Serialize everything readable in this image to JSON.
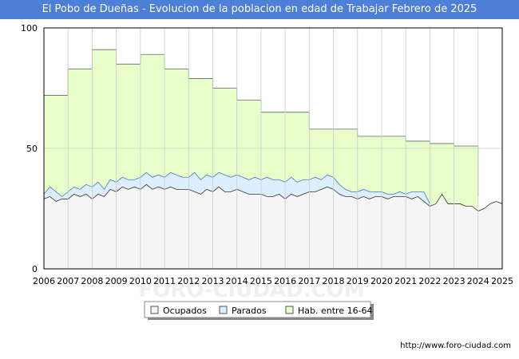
{
  "chart_data": {
    "type": "area",
    "title": "El Pobo de Dueñas - Evolucion de la poblacion en edad de Trabajar Febrero de 2025",
    "xlabel": "",
    "ylabel": "",
    "x_ticks": [
      "2006",
      "2007",
      "2008",
      "2009",
      "2010",
      "2011",
      "2012",
      "2013",
      "2014",
      "2015",
      "2016",
      "2017",
      "2018",
      "2019",
      "2020",
      "2021",
      "2022",
      "2023",
      "2024",
      "2025"
    ],
    "y_ticks": [
      0,
      50,
      100
    ],
    "xlim": [
      2006,
      2025
    ],
    "ylim": [
      0,
      100
    ],
    "grid": true,
    "legend_position": "bottom-center",
    "watermark": "FORO-CIUDAD.COM",
    "series": [
      {
        "name": "Hab. entre 16-64",
        "color": "#e8ffcc",
        "line_color": "#666666",
        "steps": [
          {
            "from": 2006,
            "value": 72
          },
          {
            "from": 2007,
            "value": 83
          },
          {
            "from": 2008,
            "value": 91
          },
          {
            "from": 2009,
            "value": 85
          },
          {
            "from": 2010,
            "value": 89
          },
          {
            "from": 2011,
            "value": 83
          },
          {
            "from": 2012,
            "value": 79
          },
          {
            "from": 2013,
            "value": 75
          },
          {
            "from": 2014,
            "value": 70
          },
          {
            "from": 2015,
            "value": 65
          },
          {
            "from": 2016,
            "value": 65
          },
          {
            "from": 2017,
            "value": 58
          },
          {
            "from": 2018,
            "value": 58
          },
          {
            "from": 2019,
            "value": 55
          },
          {
            "from": 2020,
            "value": 55
          },
          {
            "from": 2021,
            "value": 53
          },
          {
            "from": 2022,
            "value": 52
          },
          {
            "from": 2023,
            "value": 51
          },
          {
            "from": 2024,
            "value": null
          }
        ]
      },
      {
        "name": "Parados",
        "color": "#ddeeff",
        "line_color": "#4477cc",
        "points": [
          [
            2006.0,
            31
          ],
          [
            2006.25,
            34
          ],
          [
            2006.5,
            32
          ],
          [
            2006.75,
            30
          ],
          [
            2007.0,
            32
          ],
          [
            2007.25,
            34
          ],
          [
            2007.5,
            33
          ],
          [
            2007.75,
            35
          ],
          [
            2008.0,
            34
          ],
          [
            2008.25,
            36
          ],
          [
            2008.5,
            33
          ],
          [
            2008.75,
            37
          ],
          [
            2009.0,
            36
          ],
          [
            2009.25,
            38
          ],
          [
            2009.5,
            37
          ],
          [
            2009.75,
            37
          ],
          [
            2010.0,
            38
          ],
          [
            2010.25,
            40
          ],
          [
            2010.5,
            38
          ],
          [
            2010.75,
            39
          ],
          [
            2011.0,
            38
          ],
          [
            2011.25,
            40
          ],
          [
            2011.5,
            39
          ],
          [
            2011.75,
            38
          ],
          [
            2012.0,
            38
          ],
          [
            2012.25,
            40
          ],
          [
            2012.5,
            37
          ],
          [
            2012.75,
            39
          ],
          [
            2013.0,
            38
          ],
          [
            2013.25,
            40
          ],
          [
            2013.5,
            39
          ],
          [
            2013.75,
            38
          ],
          [
            2014.0,
            39
          ],
          [
            2014.25,
            38
          ],
          [
            2014.5,
            37
          ],
          [
            2014.75,
            38
          ],
          [
            2015.0,
            37
          ],
          [
            2015.25,
            38
          ],
          [
            2015.5,
            37
          ],
          [
            2015.75,
            37
          ],
          [
            2016.0,
            36
          ],
          [
            2016.25,
            38
          ],
          [
            2016.5,
            36
          ],
          [
            2016.75,
            37
          ],
          [
            2017.0,
            37
          ],
          [
            2017.25,
            38
          ],
          [
            2017.5,
            37
          ],
          [
            2017.75,
            39
          ],
          [
            2018.0,
            38
          ],
          [
            2018.25,
            35
          ],
          [
            2018.5,
            33
          ],
          [
            2018.75,
            32
          ],
          [
            2019.0,
            32
          ],
          [
            2019.25,
            33
          ],
          [
            2019.5,
            32
          ],
          [
            2019.75,
            32
          ],
          [
            2020.0,
            32
          ],
          [
            2020.25,
            31
          ],
          [
            2020.5,
            31
          ],
          [
            2020.75,
            32
          ],
          [
            2021.0,
            31
          ],
          [
            2021.25,
            32
          ],
          [
            2021.5,
            32
          ],
          [
            2021.75,
            32
          ],
          [
            2022.0,
            27
          ]
        ]
      },
      {
        "name": "Ocupados",
        "color": "#f5f5f5",
        "line_color": "#333333",
        "points": [
          [
            2006.0,
            29
          ],
          [
            2006.25,
            30
          ],
          [
            2006.5,
            28
          ],
          [
            2006.75,
            29
          ],
          [
            2007.0,
            29
          ],
          [
            2007.25,
            31
          ],
          [
            2007.5,
            30
          ],
          [
            2007.75,
            31
          ],
          [
            2008.0,
            29
          ],
          [
            2008.25,
            31
          ],
          [
            2008.5,
            30
          ],
          [
            2008.75,
            33
          ],
          [
            2009.0,
            32
          ],
          [
            2009.25,
            34
          ],
          [
            2009.5,
            33
          ],
          [
            2009.75,
            34
          ],
          [
            2010.0,
            33
          ],
          [
            2010.25,
            35
          ],
          [
            2010.5,
            33
          ],
          [
            2010.75,
            34
          ],
          [
            2011.0,
            33
          ],
          [
            2011.25,
            34
          ],
          [
            2011.5,
            33
          ],
          [
            2011.75,
            33
          ],
          [
            2012.0,
            33
          ],
          [
            2012.25,
            32
          ],
          [
            2012.5,
            31
          ],
          [
            2012.75,
            33
          ],
          [
            2013.0,
            32
          ],
          [
            2013.25,
            34
          ],
          [
            2013.5,
            32
          ],
          [
            2013.75,
            32
          ],
          [
            2014.0,
            33
          ],
          [
            2014.25,
            32
          ],
          [
            2014.5,
            31
          ],
          [
            2014.75,
            31
          ],
          [
            2015.0,
            31
          ],
          [
            2015.25,
            30
          ],
          [
            2015.5,
            30
          ],
          [
            2015.75,
            31
          ],
          [
            2016.0,
            29
          ],
          [
            2016.25,
            31
          ],
          [
            2016.5,
            30
          ],
          [
            2016.75,
            31
          ],
          [
            2017.0,
            32
          ],
          [
            2017.25,
            32
          ],
          [
            2017.5,
            33
          ],
          [
            2017.75,
            34
          ],
          [
            2018.0,
            33
          ],
          [
            2018.25,
            31
          ],
          [
            2018.5,
            30
          ],
          [
            2018.75,
            30
          ],
          [
            2019.0,
            29
          ],
          [
            2019.25,
            30
          ],
          [
            2019.5,
            29
          ],
          [
            2019.75,
            30
          ],
          [
            2020.0,
            30
          ],
          [
            2020.25,
            29
          ],
          [
            2020.5,
            30
          ],
          [
            2020.75,
            30
          ],
          [
            2021.0,
            30
          ],
          [
            2021.25,
            29
          ],
          [
            2021.5,
            30
          ],
          [
            2021.75,
            28
          ],
          [
            2022.0,
            26
          ],
          [
            2022.25,
            27
          ],
          [
            2022.5,
            31
          ],
          [
            2022.75,
            27
          ],
          [
            2023.0,
            27
          ],
          [
            2023.25,
            27
          ],
          [
            2023.5,
            26
          ],
          [
            2023.75,
            26
          ],
          [
            2024.0,
            24
          ],
          [
            2024.25,
            25
          ],
          [
            2024.5,
            27
          ],
          [
            2024.75,
            28
          ],
          [
            2025.0,
            27
          ]
        ]
      }
    ]
  },
  "footer": {
    "url": "http://www.foro-ciudad.com"
  }
}
